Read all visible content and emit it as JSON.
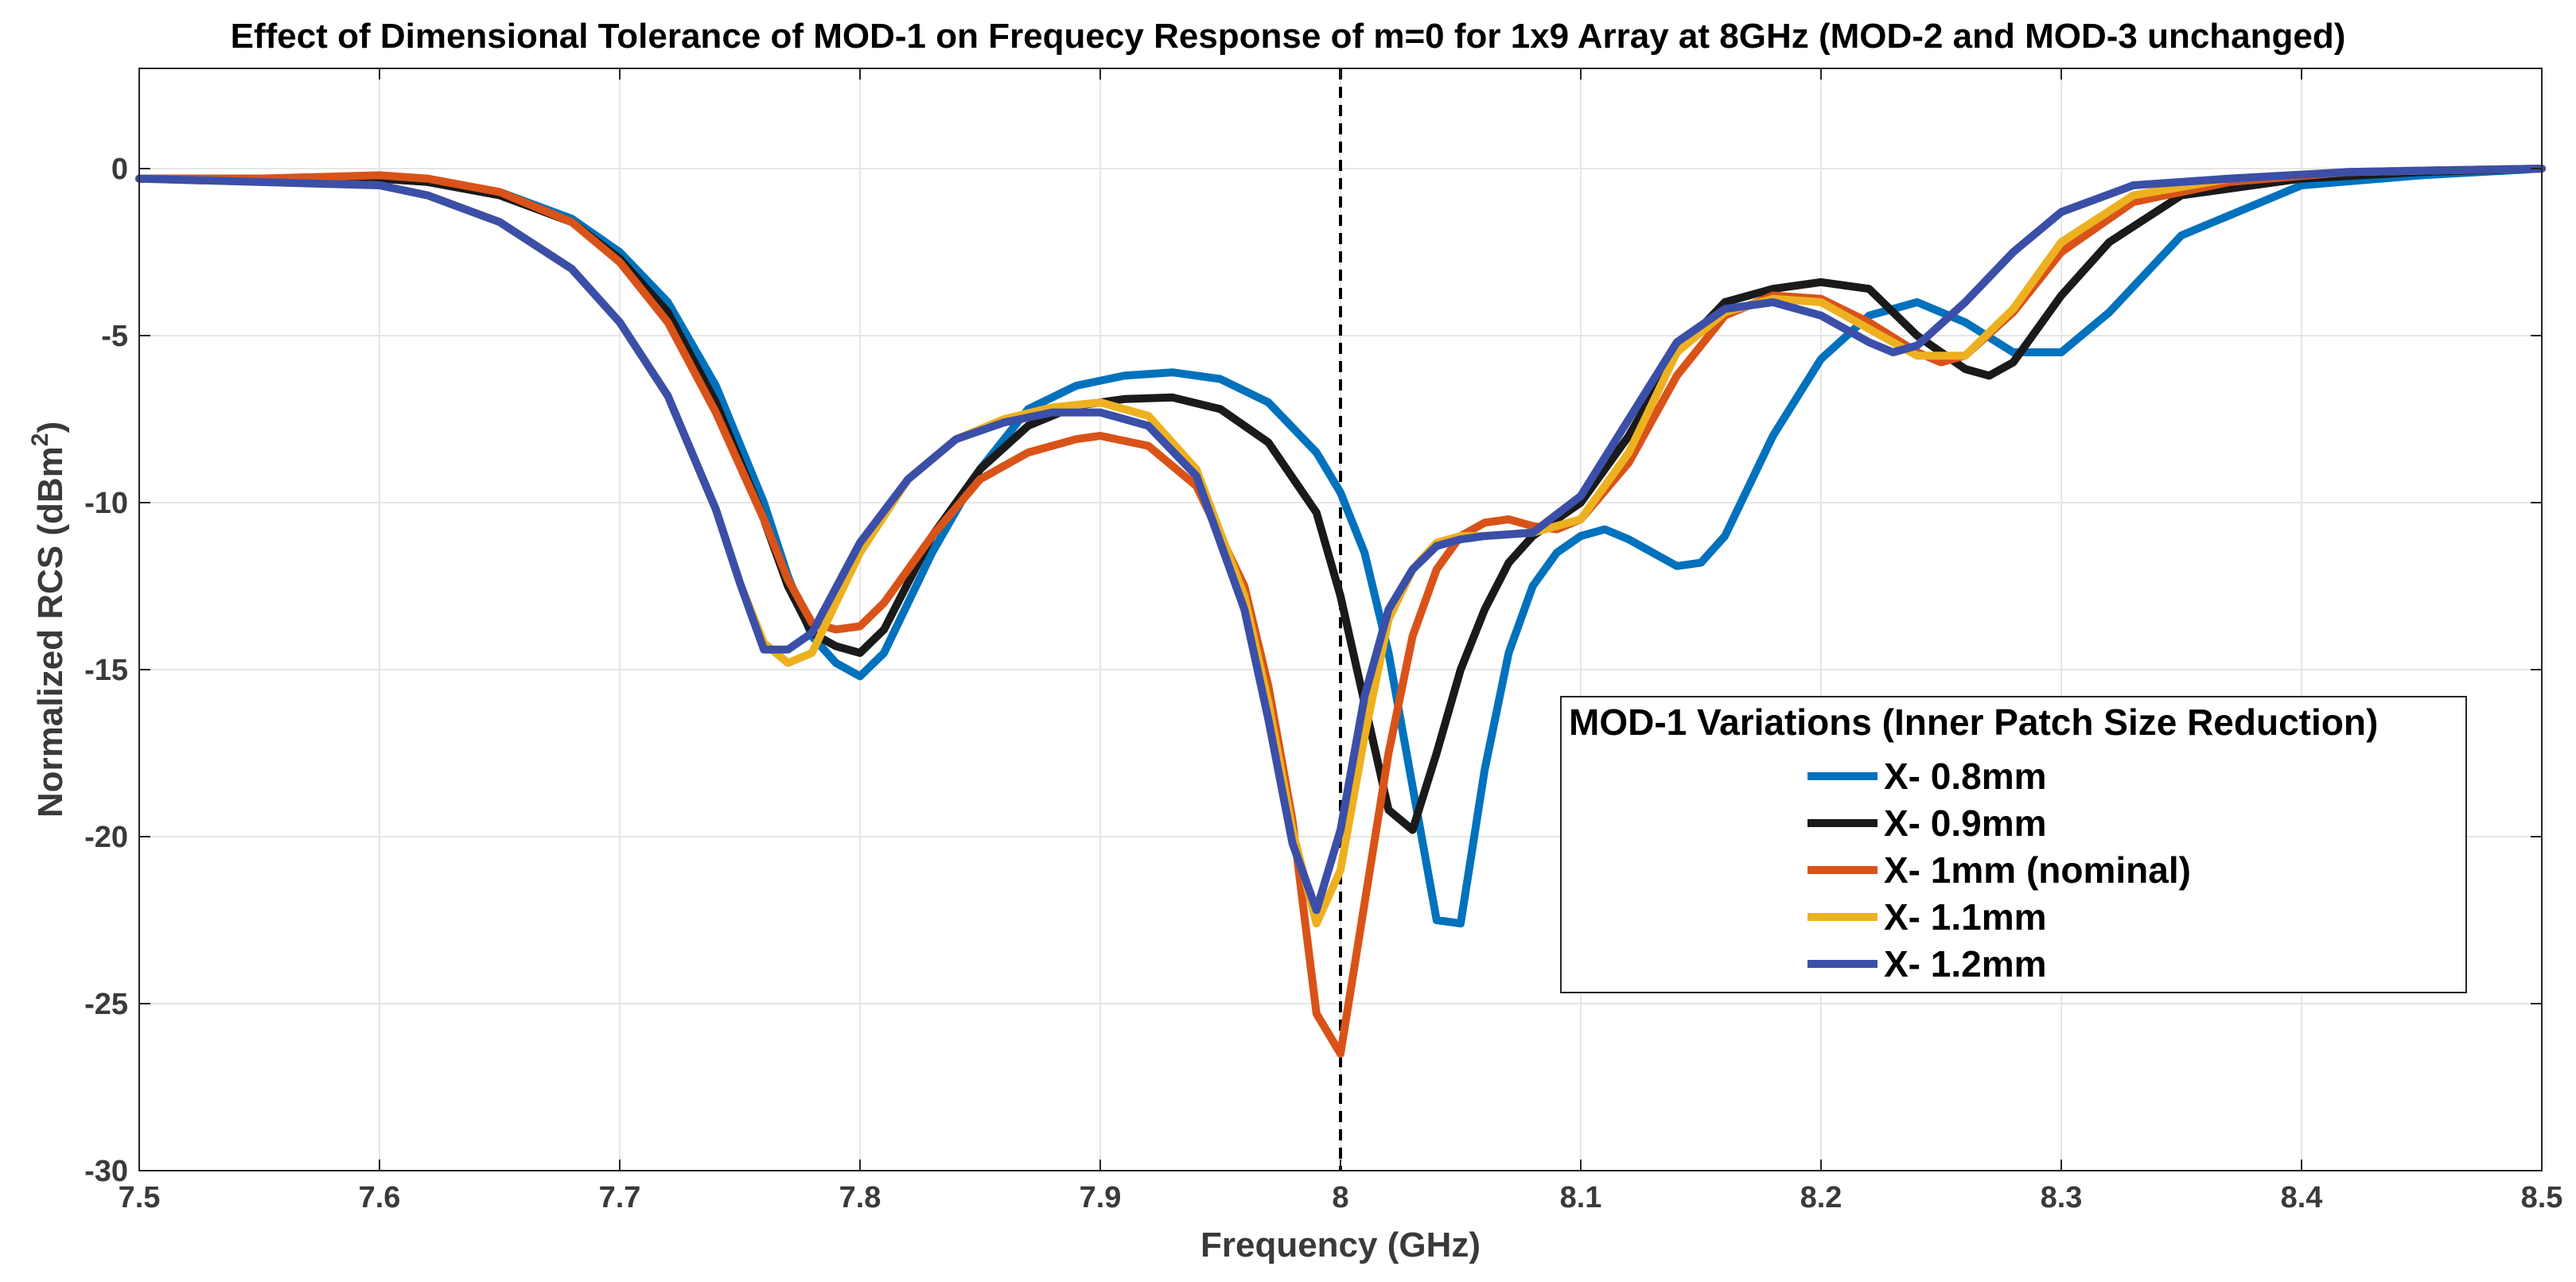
{
  "chart_data": {
    "type": "line",
    "title": "Effect of Dimensional Tolerance of MOD-1 on Frequecy Response of m=0 for 1x9 Array at 8GHz (MOD-2 and MOD-3 unchanged)",
    "xlabel": "Frequency (GHz)",
    "ylabel_main": "Normalized RCS (dBm",
    "ylabel_sup": "2",
    "ylabel_end": ")",
    "xlim": [
      7.5,
      8.5
    ],
    "ylim": [
      -30,
      3
    ],
    "xticks": [
      7.5,
      7.6,
      7.7,
      7.8,
      7.9,
      8,
      8.1,
      8.2,
      8.3,
      8.4,
      8.5
    ],
    "xtick_labels": [
      "7.5",
      "7.6",
      "7.7",
      "7.8",
      "7.9",
      "8",
      "8.1",
      "8.2",
      "8.3",
      "8.4",
      "8.5"
    ],
    "yticks": [
      0,
      -5,
      -10,
      -15,
      -20,
      -25,
      -30
    ],
    "ytick_labels": [
      "0",
      "-5",
      "-10",
      "-15",
      "-20",
      "-25",
      "-30"
    ],
    "grid": true,
    "reference_line": {
      "x": 8.0,
      "style": "dashed",
      "color": "#000000"
    },
    "legend": {
      "title": "MOD-1 Variations (Inner Patch Size Reduction)",
      "position": "lower-right"
    },
    "series": [
      {
        "name": "X- 0.8mm",
        "color": "#0072BD",
        "x": [
          7.5,
          7.55,
          7.6,
          7.62,
          7.65,
          7.68,
          7.7,
          7.72,
          7.74,
          7.76,
          7.77,
          7.78,
          7.79,
          7.8,
          7.81,
          7.83,
          7.85,
          7.87,
          7.89,
          7.91,
          7.93,
          7.95,
          7.97,
          7.99,
          8.0,
          8.01,
          8.02,
          8.03,
          8.04,
          8.05,
          8.06,
          8.07,
          8.08,
          8.09,
          8.1,
          8.11,
          8.12,
          8.13,
          8.14,
          8.15,
          8.16,
          8.18,
          8.2,
          8.22,
          8.24,
          8.26,
          8.28,
          8.3,
          8.32,
          8.35,
          8.4,
          8.45,
          8.5
        ],
        "y": [
          -0.3,
          -0.3,
          -0.3,
          -0.4,
          -0.7,
          -1.5,
          -2.5,
          -4,
          -6.5,
          -10,
          -12.2,
          -14,
          -14.8,
          -15.2,
          -14.5,
          -11.5,
          -9,
          -7.2,
          -6.5,
          -6.2,
          -6.1,
          -6.3,
          -7,
          -8.5,
          -9.7,
          -11.5,
          -14.5,
          -18.5,
          -22.5,
          -22.6,
          -18,
          -14.5,
          -12.5,
          -11.5,
          -11,
          -10.8,
          -11.1,
          -11.5,
          -11.9,
          -11.8,
          -11,
          -8,
          -5.7,
          -4.4,
          -4,
          -4.6,
          -5.5,
          -5.5,
          -4.3,
          -2,
          -0.5,
          -0.2,
          0
        ]
      },
      {
        "name": "X- 0.9mm",
        "color": "#1a1a1a",
        "x": [
          7.5,
          7.55,
          7.6,
          7.62,
          7.65,
          7.68,
          7.7,
          7.72,
          7.74,
          7.76,
          7.77,
          7.78,
          7.79,
          7.8,
          7.81,
          7.83,
          7.85,
          7.87,
          7.89,
          7.91,
          7.93,
          7.95,
          7.97,
          7.99,
          8.0,
          8.01,
          8.02,
          8.03,
          8.04,
          8.05,
          8.06,
          8.07,
          8.08,
          8.1,
          8.12,
          8.14,
          8.16,
          8.18,
          8.2,
          8.22,
          8.24,
          8.26,
          8.27,
          8.28,
          8.3,
          8.32,
          8.35,
          8.4,
          8.45,
          8.5
        ],
        "y": [
          -0.3,
          -0.3,
          -0.3,
          -0.4,
          -0.8,
          -1.6,
          -2.7,
          -4.3,
          -7,
          -10.5,
          -12.5,
          -13.9,
          -14.3,
          -14.5,
          -13.8,
          -11,
          -9,
          -7.7,
          -7.1,
          -6.9,
          -6.85,
          -7.2,
          -8.2,
          -10.3,
          -12.8,
          -16,
          -19.2,
          -19.8,
          -17.5,
          -15,
          -13.2,
          -11.8,
          -11,
          -10,
          -8,
          -5.5,
          -4,
          -3.6,
          -3.4,
          -3.6,
          -5,
          -6,
          -6.2,
          -5.8,
          -3.8,
          -2.2,
          -0.8,
          -0.3,
          -0.1,
          0
        ]
      },
      {
        "name": "X- 1mm (nominal)",
        "color": "#D95319",
        "x": [
          7.5,
          7.55,
          7.6,
          7.62,
          7.65,
          7.68,
          7.7,
          7.72,
          7.74,
          7.76,
          7.77,
          7.78,
          7.79,
          7.8,
          7.81,
          7.83,
          7.85,
          7.87,
          7.89,
          7.9,
          7.92,
          7.94,
          7.96,
          7.97,
          7.98,
          7.99,
          8.0,
          8.01,
          8.02,
          8.03,
          8.04,
          8.05,
          8.06,
          8.07,
          8.08,
          8.09,
          8.1,
          8.12,
          8.14,
          8.16,
          8.18,
          8.2,
          8.22,
          8.24,
          8.25,
          8.26,
          8.28,
          8.3,
          8.33,
          8.37,
          8.42,
          8.5
        ],
        "y": [
          -0.3,
          -0.3,
          -0.2,
          -0.3,
          -0.7,
          -1.6,
          -2.8,
          -4.6,
          -7.3,
          -10.5,
          -12.3,
          -13.6,
          -13.8,
          -13.7,
          -13,
          -11,
          -9.3,
          -8.5,
          -8.1,
          -8,
          -8.3,
          -9.5,
          -12.5,
          -15.5,
          -19.5,
          -25.3,
          -26.5,
          -22,
          -17.5,
          -14,
          -12,
          -11,
          -10.6,
          -10.5,
          -10.7,
          -10.8,
          -10.5,
          -8.8,
          -6.2,
          -4.4,
          -3.8,
          -3.9,
          -4.6,
          -5.5,
          -5.8,
          -5.6,
          -4.3,
          -2.5,
          -1,
          -0.4,
          -0.1,
          0
        ]
      },
      {
        "name": "X- 1.1mm",
        "color": "#EDB120",
        "x": [
          7.5,
          7.55,
          7.6,
          7.62,
          7.65,
          7.68,
          7.7,
          7.72,
          7.74,
          7.75,
          7.76,
          7.77,
          7.78,
          7.8,
          7.82,
          7.84,
          7.86,
          7.88,
          7.9,
          7.92,
          7.94,
          7.96,
          7.97,
          7.98,
          7.99,
          8.0,
          8.01,
          8.02,
          8.03,
          8.04,
          8.05,
          8.06,
          8.08,
          8.1,
          8.12,
          8.14,
          8.16,
          8.18,
          8.2,
          8.22,
          8.24,
          8.26,
          8.28,
          8.3,
          8.33,
          8.37,
          8.42,
          8.5
        ],
        "y": [
          -0.3,
          -0.4,
          -0.5,
          -0.8,
          -1.6,
          -3,
          -4.6,
          -6.8,
          -10.2,
          -12.4,
          -14.2,
          -14.8,
          -14.5,
          -11.5,
          -9.3,
          -8.1,
          -7.5,
          -7.15,
          -7,
          -7.4,
          -9,
          -12.8,
          -16,
          -19.8,
          -22.6,
          -21,
          -17,
          -13.5,
          -12,
          -11.2,
          -11,
          -11,
          -10.9,
          -10.5,
          -8.5,
          -5.5,
          -4.3,
          -3.9,
          -4,
          -4.8,
          -5.6,
          -5.6,
          -4.2,
          -2.2,
          -0.8,
          -0.3,
          -0.1,
          0
        ]
      },
      {
        "name": "X- 1.2mm",
        "color": "#3B4FA8",
        "x": [
          7.5,
          7.55,
          7.6,
          7.62,
          7.65,
          7.68,
          7.7,
          7.72,
          7.74,
          7.75,
          7.76,
          7.77,
          7.78,
          7.8,
          7.82,
          7.84,
          7.86,
          7.88,
          7.9,
          7.92,
          7.94,
          7.96,
          7.97,
          7.98,
          7.99,
          8.0,
          8.01,
          8.02,
          8.03,
          8.04,
          8.05,
          8.06,
          8.08,
          8.1,
          8.12,
          8.14,
          8.16,
          8.18,
          8.2,
          8.22,
          8.23,
          8.24,
          8.26,
          8.28,
          8.3,
          8.33,
          8.37,
          8.42,
          8.5
        ],
        "y": [
          -0.3,
          -0.4,
          -0.5,
          -0.8,
          -1.6,
          -3,
          -4.6,
          -6.8,
          -10.2,
          -12.4,
          -14.4,
          -14.4,
          -13.9,
          -11.2,
          -9.3,
          -8.1,
          -7.6,
          -7.3,
          -7.3,
          -7.7,
          -9.2,
          -13.2,
          -16.5,
          -20.2,
          -22.2,
          -19.8,
          -15.8,
          -13.2,
          -12,
          -11.3,
          -11.1,
          -11,
          -10.9,
          -9.8,
          -7.5,
          -5.2,
          -4.2,
          -4,
          -4.4,
          -5.2,
          -5.5,
          -5.3,
          -4,
          -2.5,
          -1.3,
          -0.5,
          -0.3,
          -0.1,
          0
        ]
      }
    ]
  }
}
